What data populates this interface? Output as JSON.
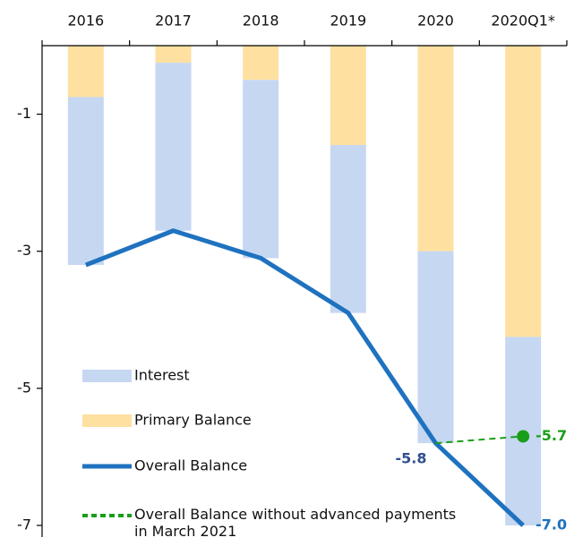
{
  "chart_data": {
    "type": "bar",
    "categories": [
      "2016",
      "2017",
      "2018",
      "2019",
      "2020",
      "2020Q1*"
    ],
    "ylim": [
      -7,
      0
    ],
    "yticks": [
      -1,
      -3,
      -5,
      -7
    ],
    "legend": "lower left",
    "series": [
      {
        "name": "Interest",
        "type": "bar",
        "color": "#c6d7f2",
        "values": [
          -2.45,
          -2.45,
          -2.6,
          -2.45,
          -2.8,
          -2.75
        ]
      },
      {
        "name": "Primary Balance",
        "type": "bar",
        "color": "#fee0a0",
        "values": [
          -0.75,
          -0.25,
          -0.5,
          -1.45,
          -3.0,
          -4.25
        ]
      },
      {
        "name": "Overall Balance",
        "type": "line",
        "color": "#1f72bf",
        "values": [
          -3.2,
          -2.7,
          -3.1,
          -3.9,
          -5.8,
          -7.0
        ],
        "value_labels": [
          null,
          null,
          null,
          null,
          "-5.8",
          "-7.0"
        ]
      },
      {
        "name": "Overall Balance without advanced payments in March 2021",
        "type": "dashed",
        "color": "#1a9e1a",
        "values": [
          null,
          null,
          null,
          null,
          -5.8,
          -5.7
        ],
        "value_labels": [
          null,
          null,
          null,
          null,
          null,
          "-5.7"
        ]
      }
    ]
  }
}
